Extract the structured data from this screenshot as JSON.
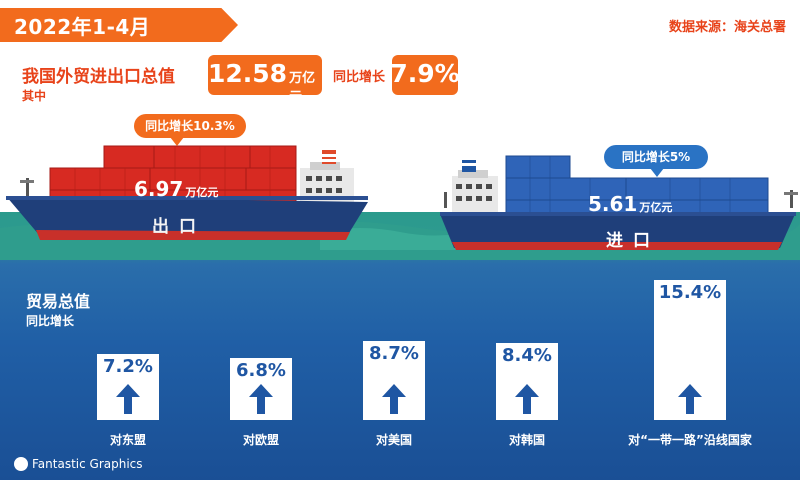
{
  "header": {
    "title": "2022年1-4月",
    "source": "数据来源：海关总署",
    "total_label": "我国外贸进出口总值",
    "total_value": "12.58",
    "total_unit": "万亿元",
    "growth_label": "同比增长",
    "growth_value": "7.9%",
    "sub_label": "其中"
  },
  "export": {
    "bubble": "同比增长10.3%",
    "value": "6.97",
    "unit": "万亿元",
    "name": "出口"
  },
  "import": {
    "bubble": "同比增长5%",
    "value": "5.61",
    "unit": "万亿元",
    "name": "进口"
  },
  "trade": {
    "title": "贸易总值",
    "subtitle": "同比增长",
    "partners": [
      {
        "label": "对东盟",
        "value": "7.2%",
        "growth": 7.2
      },
      {
        "label": "对欧盟",
        "value": "6.8%",
        "growth": 6.8
      },
      {
        "label": "对美国",
        "value": "8.7%",
        "growth": 8.7
      },
      {
        "label": "对韩国",
        "value": "8.4%",
        "growth": 8.4
      },
      {
        "label": "对“一带一路”沿线国家",
        "value": "15.4%",
        "growth": 15.4
      }
    ]
  },
  "brand": "Fantastic Graphics",
  "colors": {
    "orange": "#f26b1d",
    "red": "#e8431a",
    "blue": "#1f56a3",
    "sea": "#205fa6"
  }
}
